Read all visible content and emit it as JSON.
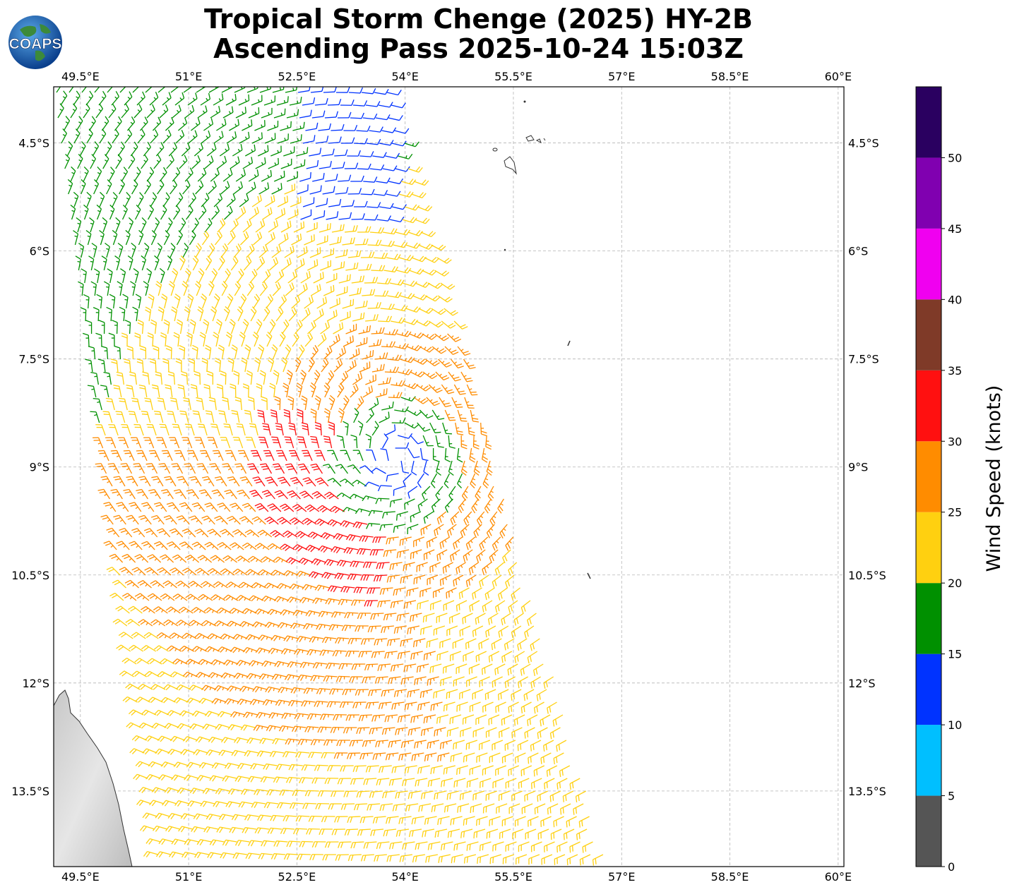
{
  "title": {
    "line1": "Tropical Storm Chenge (2025) HY-2B",
    "line2": "Ascending Pass 2025-10-24 15:03Z"
  },
  "logo": {
    "text": "COAPS",
    "icon": "globe-logo-icon"
  },
  "map": {
    "lon_range": [
      49.13,
      60.08
    ],
    "lat_range": [
      -14.55,
      -3.72
    ],
    "gridlines": true,
    "lon_ticks": [
      {
        "value": 49.5,
        "label": "49.5°E"
      },
      {
        "value": 51.0,
        "label": "51°E"
      },
      {
        "value": 52.5,
        "label": "52.5°E"
      },
      {
        "value": 54.0,
        "label": "54°E"
      },
      {
        "value": 55.5,
        "label": "55.5°E"
      },
      {
        "value": 57.0,
        "label": "57°E"
      },
      {
        "value": 58.5,
        "label": "58.5°E"
      },
      {
        "value": 60.0,
        "label": "60°E"
      }
    ],
    "lat_ticks": [
      {
        "value": -4.5,
        "label": "4.5°S"
      },
      {
        "value": -6.0,
        "label": "6°S"
      },
      {
        "value": -7.5,
        "label": "7.5°S"
      },
      {
        "value": -9.0,
        "label": "9°S"
      },
      {
        "value": -10.5,
        "label": "10.5°S"
      },
      {
        "value": -12.0,
        "label": "12°S"
      },
      {
        "value": -13.5,
        "label": "13.5°S"
      }
    ],
    "storm_center": {
      "lon": 53.9,
      "lat": -8.95
    },
    "swath": {
      "west_lon_top": 49.13,
      "east_lon_top": 53.8,
      "lat_top": -3.72,
      "west_lon_bottom": 50.6,
      "east_lon_bottom": 56.8,
      "lat_bottom": -14.55
    }
  },
  "colorbar": {
    "label": "Wind Speed (knots)",
    "range": [
      0,
      55
    ],
    "bins": [
      {
        "from": 0,
        "to": 5,
        "color": "#555555"
      },
      {
        "from": 5,
        "to": 10,
        "color": "#00bfff"
      },
      {
        "from": 10,
        "to": 15,
        "color": "#0033ff"
      },
      {
        "from": 15,
        "to": 20,
        "color": "#009000"
      },
      {
        "from": 20,
        "to": 25,
        "color": "#ffd010"
      },
      {
        "from": 25,
        "to": 30,
        "color": "#ff8c00"
      },
      {
        "from": 30,
        "to": 35,
        "color": "#ff1010"
      },
      {
        "from": 35,
        "to": 40,
        "color": "#7f3a28"
      },
      {
        "from": 40,
        "to": 45,
        "color": "#f000f0"
      },
      {
        "from": 45,
        "to": 50,
        "color": "#8000b0"
      },
      {
        "from": 50,
        "to": 55,
        "color": "#2a0060"
      }
    ],
    "ticks": [
      "0",
      "5",
      "10",
      "15",
      "20",
      "25",
      "30",
      "35",
      "40",
      "45",
      "50"
    ]
  }
}
